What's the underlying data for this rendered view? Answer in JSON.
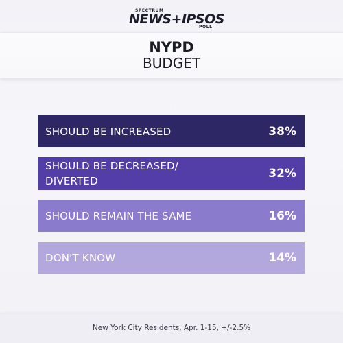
{
  "logo": {
    "top": "SPECTRUM",
    "main": "NEWS+IPSOS",
    "bottom": "POLL"
  },
  "title": {
    "line1": "NYPD",
    "line2": "BUDGET"
  },
  "chart_data": {
    "type": "bar",
    "orientation": "horizontal",
    "categories": [
      "SHOULD BE INCREASED",
      "SHOULD BE DECREASED/ DIVERTED",
      "SHOULD REMAIN THE SAME",
      "DON'T KNOW"
    ],
    "category_lines": [
      [
        "SHOULD BE INCREASED"
      ],
      [
        "SHOULD BE DECREASED/",
        "DIVERTED"
      ],
      [
        "SHOULD REMAIN THE SAME"
      ],
      [
        "DON'T KNOW"
      ]
    ],
    "values": [
      38,
      32,
      16,
      14
    ],
    "value_labels": [
      "38%",
      "32%",
      "16%",
      "14%"
    ],
    "colors": [
      "#2e2766",
      "#523ea6",
      "#8a7bcd",
      "#b3a8dd"
    ],
    "title": "NYPD BUDGET",
    "xlabel": "",
    "ylabel": ""
  },
  "footer": {
    "note": "New York City Residents, Apr. 1-15, +/-2.5%"
  }
}
